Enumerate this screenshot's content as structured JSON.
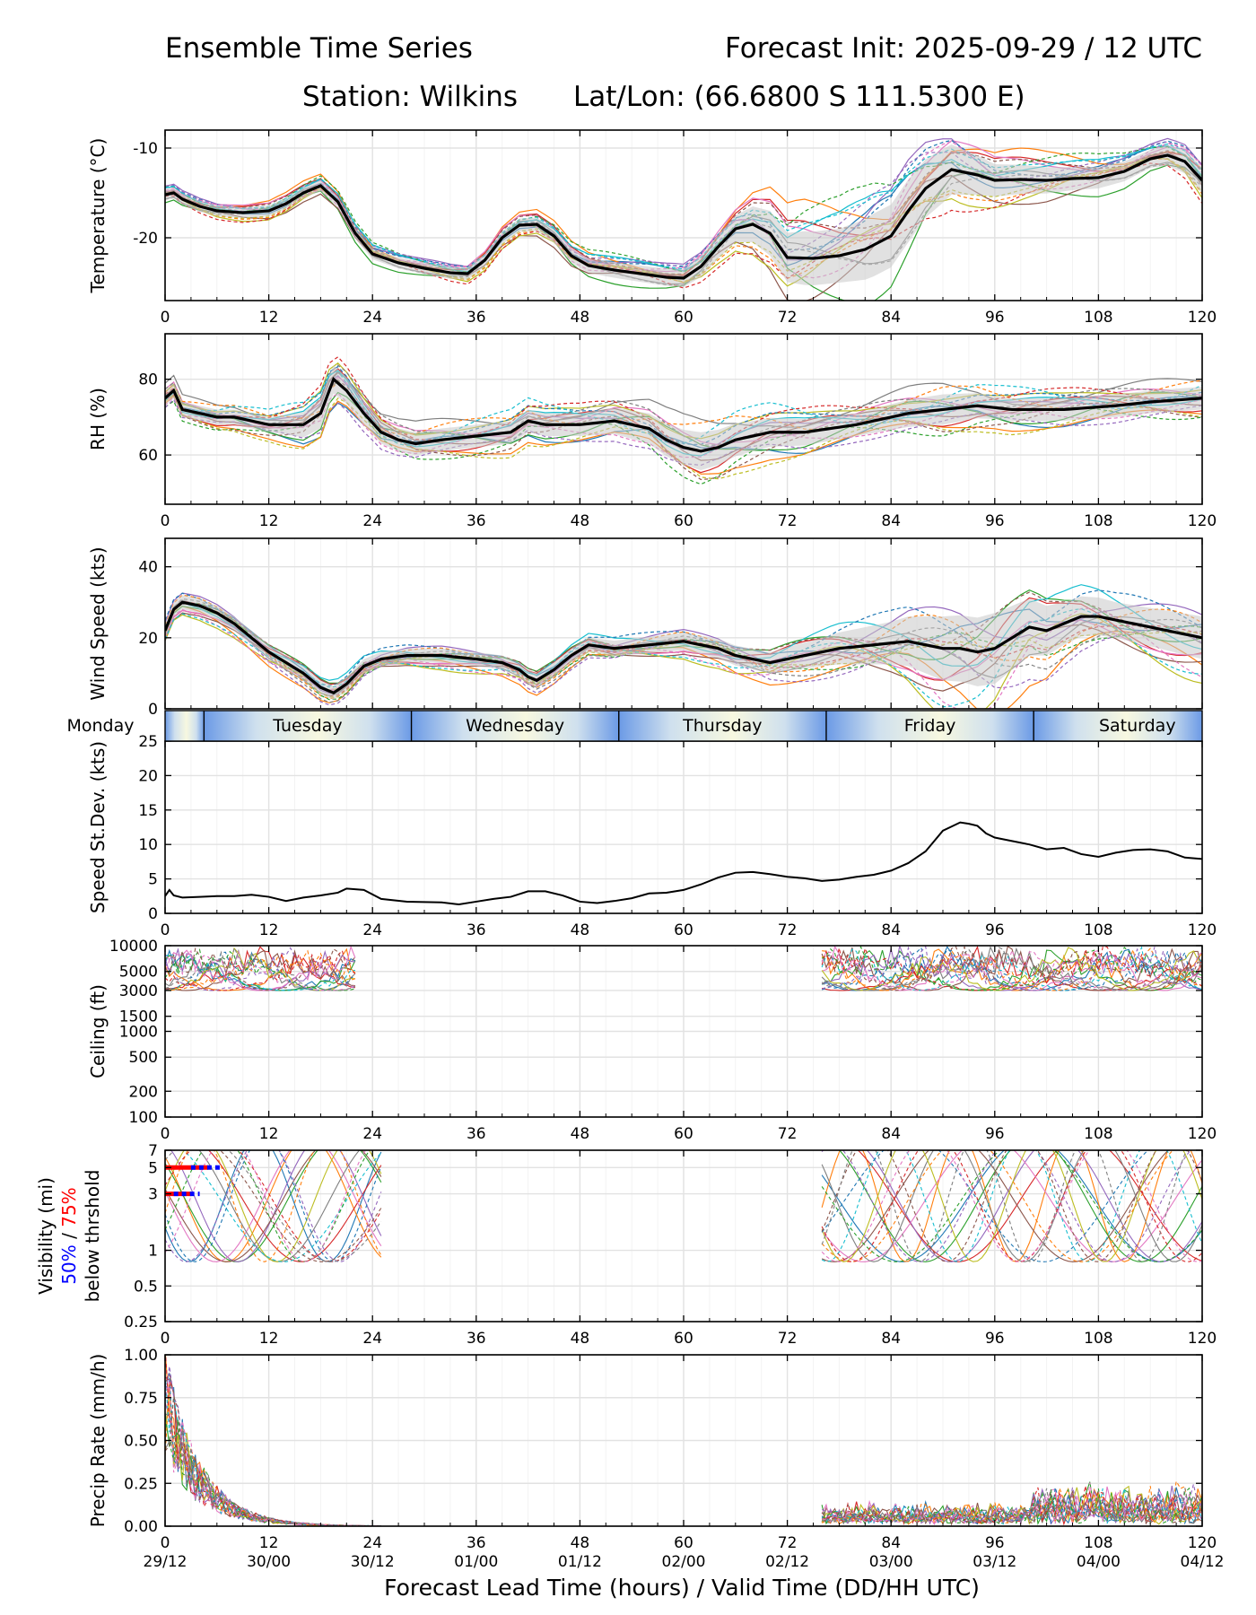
{
  "header": {
    "title_left": "Ensemble Time Series",
    "title_right": "Forecast Init: 2025-09-29 / 12 UTC",
    "station": "Station: Wilkins",
    "latlon": "Lat/Lon: (66.6800 S 111.5300 E)"
  },
  "colors": {
    "mean": "#000000",
    "spread": "#c8c8c8",
    "vis50": "#0000ff",
    "vis75": "#ff0000",
    "members": [
      "#1f77b4",
      "#ff7f0e",
      "#2ca02c",
      "#d62728",
      "#9467bd",
      "#8c564b",
      "#e377c2",
      "#7f7f7f",
      "#bcbd22",
      "#17becf"
    ]
  },
  "xaxis": {
    "ticks": [
      0,
      12,
      24,
      36,
      48,
      60,
      72,
      84,
      96,
      108,
      120
    ],
    "valid_time_labels": [
      "29/12",
      "30/00",
      "30/12",
      "01/00",
      "01/12",
      "02/00",
      "02/12",
      "03/00",
      "03/12",
      "04/00",
      "04/12"
    ],
    "xlabel": "Forecast Lead Time (hours) / Valid Time (DD/HH UTC)"
  },
  "day_band": {
    "labels": [
      {
        "name": "Monday",
        "hour": -0.5
      },
      {
        "name": "Tuesday",
        "hour": 16.5
      },
      {
        "name": "Wednesday",
        "hour": 40.5
      },
      {
        "name": "Thursday",
        "hour": 64.5
      },
      {
        "name": "Friday",
        "hour": 88.5
      },
      {
        "name": "Saturday",
        "hour": 112.5
      }
    ],
    "dividers": [
      4.5,
      28.5,
      52.5,
      76.5,
      100.5
    ]
  },
  "chart_data": [
    {
      "id": "temperature",
      "type": "line",
      "ylabel": "Temperature (°C)",
      "ylim": [
        -27,
        -8
      ],
      "yticks": [
        -20,
        -10
      ],
      "mean": {
        "x": [
          0,
          1,
          2,
          4,
          6,
          9,
          12,
          14,
          16,
          18,
          20,
          22,
          24,
          27,
          30,
          33,
          35,
          37,
          39,
          41,
          43,
          45,
          47,
          49,
          52,
          55,
          58,
          60,
          62,
          64,
          66,
          68,
          70,
          72,
          75,
          78,
          81,
          84,
          86,
          88,
          91,
          94,
          96,
          99,
          102,
          105,
          108,
          111,
          114,
          116,
          118,
          120
        ],
        "y": [
          -15.2,
          -15.0,
          -15.7,
          -16.5,
          -17.0,
          -17.2,
          -17.0,
          -16.2,
          -15.0,
          -14.2,
          -16.0,
          -19.5,
          -21.8,
          -22.8,
          -23.4,
          -23.9,
          -24.0,
          -22.5,
          -20.0,
          -18.6,
          -18.5,
          -19.8,
          -22.0,
          -23.1,
          -23.6,
          -24.0,
          -24.4,
          -24.5,
          -23.2,
          -21.0,
          -19.0,
          -18.5,
          -19.5,
          -22.2,
          -22.3,
          -22.0,
          -21.3,
          -19.8,
          -17.0,
          -14.5,
          -12.4,
          -13.0,
          -13.6,
          -13.5,
          -13.6,
          -13.4,
          -13.3,
          -12.6,
          -11.2,
          -10.8,
          -11.5,
          -13.6
        ]
      },
      "spread_width": {
        "x": [
          0,
          24,
          48,
          60,
          66,
          70,
          74,
          78,
          82,
          86,
          90,
          96,
          105,
          114,
          120
        ],
        "y": [
          0.6,
          0.6,
          0.8,
          1.0,
          1.5,
          2.5,
          3.0,
          3.0,
          3.5,
          3.5,
          3.0,
          1.8,
          1.3,
          1.0,
          1.5
        ]
      }
    },
    {
      "id": "rh",
      "type": "line",
      "ylabel": "RH (%)",
      "ylim": [
        47,
        92
      ],
      "yticks": [
        60,
        80
      ],
      "mean": {
        "x": [
          0,
          1,
          2,
          4,
          6,
          8,
          10,
          12,
          14,
          16,
          18,
          19.5,
          21,
          23,
          25,
          27,
          29,
          32,
          36,
          40,
          42,
          44,
          48,
          52,
          56,
          58,
          60,
          62,
          64,
          66,
          70,
          74,
          80,
          86,
          90,
          94,
          98,
          104,
          110,
          114,
          120
        ],
        "y": [
          75,
          77,
          72,
          71,
          70,
          70,
          69,
          68,
          68,
          68,
          71,
          80,
          77,
          71,
          66,
          64,
          63,
          64,
          65,
          66,
          69,
          68,
          68,
          69,
          67,
          64,
          62,
          61,
          62,
          64,
          66,
          66,
          68,
          71,
          72,
          73,
          72,
          72,
          73,
          74,
          75
        ]
      },
      "spread_width": {
        "x": [
          0,
          12,
          18,
          24,
          36,
          48,
          56,
          62,
          68,
          80,
          90,
          96,
          108,
          120
        ],
        "y": [
          2,
          2,
          4,
          3,
          3,
          3,
          4,
          5,
          4,
          3,
          4,
          3,
          3,
          3
        ]
      }
    },
    {
      "id": "wind",
      "type": "line",
      "ylabel": "Wind Speed (kts)",
      "ylim": [
        0,
        48
      ],
      "yticks": [
        0,
        20,
        40
      ],
      "mean": {
        "x": [
          0,
          1,
          2,
          4,
          6,
          8,
          10,
          12,
          14,
          16,
          18,
          19.5,
          21,
          23,
          25,
          28,
          32,
          36,
          39,
          41,
          42,
          43,
          45,
          47,
          49,
          52,
          56,
          60,
          62,
          64,
          66,
          68,
          70,
          74,
          78,
          82,
          86,
          88,
          90,
          92,
          94,
          96,
          98,
          100,
          102,
          104,
          106,
          108,
          110,
          114,
          118,
          120
        ],
        "y": [
          22,
          28,
          30,
          29,
          27,
          24,
          20,
          16,
          13,
          10,
          6,
          4.5,
          7,
          12,
          14,
          15,
          15,
          14,
          13,
          11,
          9,
          8,
          11,
          15,
          18,
          17,
          18,
          19,
          18,
          17,
          15,
          14,
          13,
          15,
          17,
          18,
          19,
          18,
          17,
          17,
          16,
          17,
          20,
          23,
          22,
          24,
          26,
          26,
          25,
          23,
          21,
          20
        ]
      },
      "spread_width": {
        "x": [
          0,
          24,
          48,
          60,
          70,
          76,
          84,
          90,
          96,
          104,
          110,
          120
        ],
        "y": [
          2,
          2,
          2,
          2.5,
          3,
          4,
          6,
          9,
          10,
          6,
          5,
          6
        ]
      }
    },
    {
      "id": "speed_stdev",
      "type": "line",
      "ylabel": "Speed St.Dev. (kts)",
      "ylim": [
        0,
        25
      ],
      "yticks": [
        0,
        5,
        10,
        15,
        20,
        25
      ],
      "mean": {
        "x": [
          0,
          0.5,
          1,
          2,
          4,
          6,
          8,
          10,
          12,
          14,
          16,
          18,
          20,
          21,
          23,
          25,
          28,
          32,
          34,
          36,
          38,
          40,
          42,
          44,
          46,
          48,
          50,
          52,
          54,
          56,
          58,
          60,
          62,
          64,
          66,
          68,
          70,
          72,
          74,
          76,
          78,
          80,
          82,
          84,
          86,
          88,
          89,
          90,
          91,
          92,
          93,
          94,
          95,
          96,
          98,
          100,
          102,
          104,
          106,
          108,
          110,
          112,
          114,
          116,
          118,
          120
        ],
        "y": [
          2.5,
          3.4,
          2.6,
          2.3,
          2.4,
          2.5,
          2.5,
          2.7,
          2.4,
          1.8,
          2.3,
          2.6,
          3.0,
          3.6,
          3.4,
          2.1,
          1.7,
          1.6,
          1.3,
          1.7,
          2.1,
          2.4,
          3.2,
          3.2,
          2.6,
          1.7,
          1.5,
          1.8,
          2.2,
          2.9,
          3.0,
          3.4,
          4.2,
          5.2,
          5.9,
          6.0,
          5.7,
          5.3,
          5.1,
          4.7,
          4.9,
          5.3,
          5.6,
          6.2,
          7.3,
          9.0,
          10.5,
          12.0,
          12.6,
          13.2,
          13.0,
          12.7,
          11.6,
          11.0,
          10.5,
          10.0,
          9.3,
          9.5,
          8.6,
          8.2,
          8.8,
          9.2,
          9.3,
          9.0,
          8.1,
          7.9
        ]
      }
    },
    {
      "id": "ceiling",
      "type": "line",
      "ylabel": "Ceiling (ft)",
      "yscale": "log",
      "ylim": [
        100,
        10000
      ],
      "yticks": [
        100,
        200,
        500,
        1000,
        1500,
        3000,
        5000,
        10000
      ],
      "yticklabels": [
        "100",
        "200",
        "500",
        "1000",
        "1500",
        "3000",
        "5000",
        "10000"
      ],
      "member_windows": [
        [
          0,
          22
        ],
        [
          76,
          120
        ]
      ],
      "member_range_ft": [
        3000,
        10000
      ]
    },
    {
      "id": "visibility",
      "type": "line",
      "ylabel_lines": [
        "Visibility (mi)",
        "below thrshold"
      ],
      "ylabel_pct": {
        "p50": "50%",
        "sep": " / ",
        "p75": "75%"
      },
      "yscale": "log",
      "ylim": [
        0.25,
        7
      ],
      "yticks": [
        0.25,
        0.5,
        1,
        3,
        5,
        7
      ],
      "yticklabels": [
        "0.25",
        "0.5",
        "1",
        "3",
        "5",
        "7"
      ],
      "member_windows": [
        [
          0,
          25
        ],
        [
          76,
          120
        ]
      ],
      "threshold_markers": [
        {
          "level": 5,
          "p75_x": [
            0,
            5
          ],
          "p50_x": [
            3,
            6.5
          ]
        },
        {
          "level": 3,
          "p75_x": [
            0,
            3
          ],
          "p50_x": [
            1,
            4
          ]
        }
      ]
    },
    {
      "id": "precip",
      "type": "line",
      "ylabel": "Precip Rate (mm/h)",
      "ylim": [
        0,
        1.0
      ],
      "yticks": [
        0,
        0.25,
        0.5,
        0.75,
        1.0
      ],
      "yticklabels": [
        "0.00",
        "0.25",
        "0.50",
        "0.75",
        "1.00"
      ],
      "member_windows": [
        [
          0,
          25
        ],
        [
          76,
          120
        ]
      ]
    }
  ]
}
